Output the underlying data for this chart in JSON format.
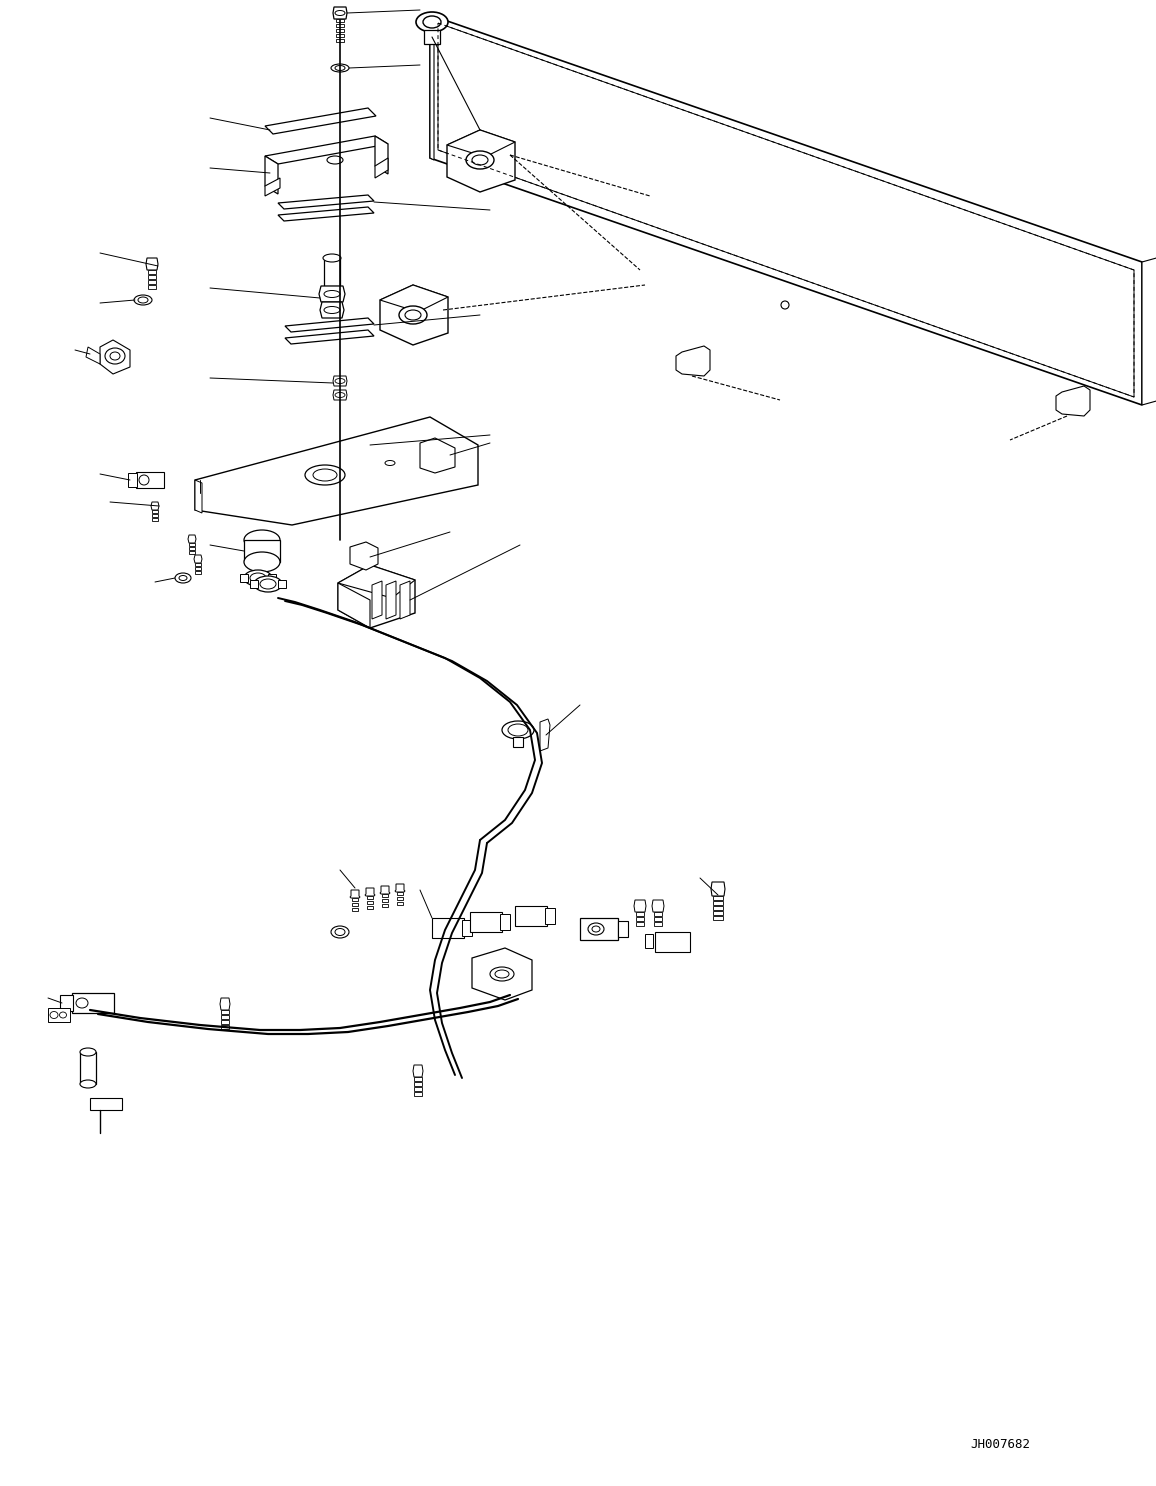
{
  "bg_color": "#ffffff",
  "line_color": "#000000",
  "fig_width": 11.56,
  "fig_height": 14.86,
  "dpi": 100,
  "watermark": "JH007682",
  "watermark_fontsize": 9
}
